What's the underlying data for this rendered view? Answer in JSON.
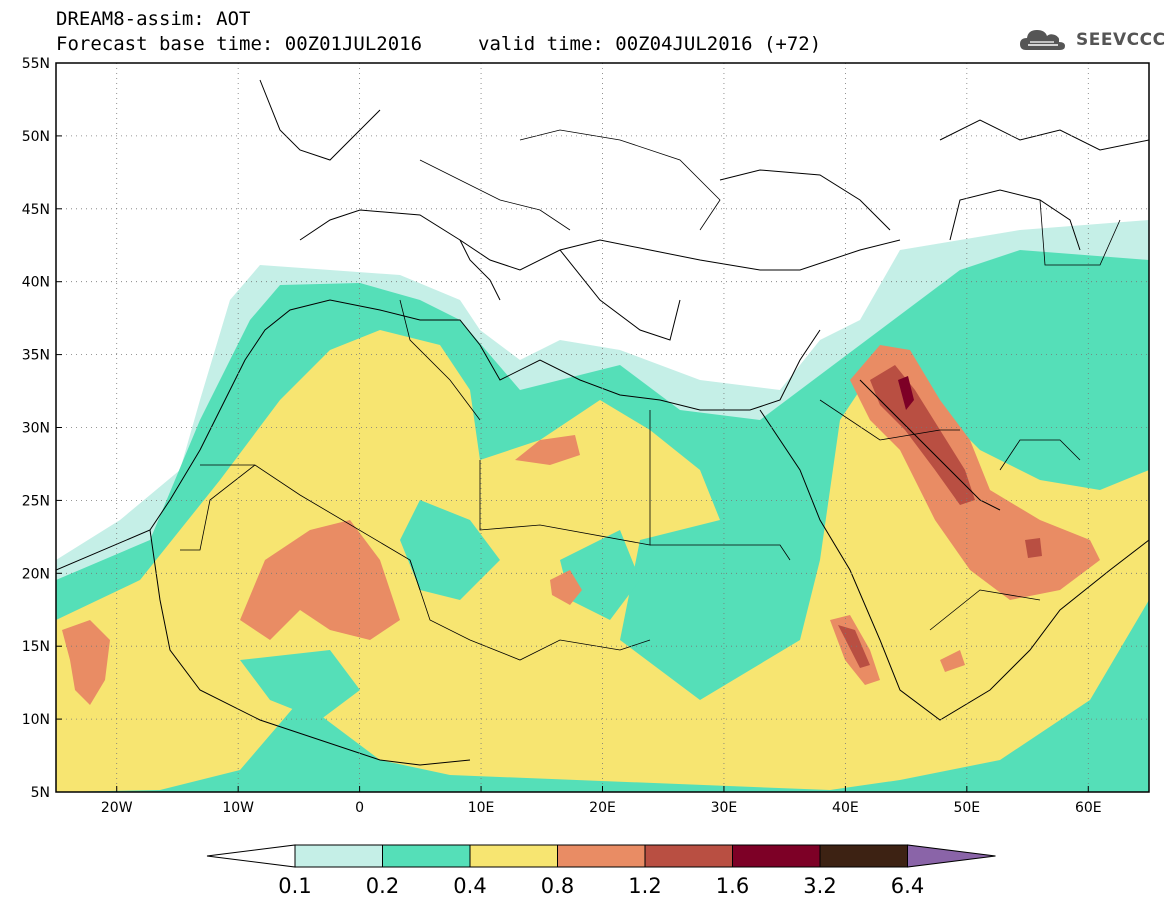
{
  "header": {
    "title": "DREAM8-assim: AOT",
    "base_time": "Forecast base time: 00Z01JUL2016",
    "valid_time": "valid time: 00Z04JUL2016 (+72)"
  },
  "logo": {
    "text": "SEEVCCC",
    "icon": "cloud-icon",
    "color": "#555555"
  },
  "map": {
    "lon_range": [
      -25,
      65
    ],
    "lat_range": [
      5,
      55
    ],
    "lat_ticks": [
      "5N",
      "10N",
      "15N",
      "20N",
      "25N",
      "30N",
      "35N",
      "40N",
      "45N",
      "50N",
      "55N"
    ],
    "lon_ticks": [
      "20W",
      "10W",
      "0",
      "10E",
      "20E",
      "30E",
      "40E",
      "50E",
      "60E"
    ],
    "grid": true
  },
  "colorbar": {
    "levels": [
      "0.1",
      "0.2",
      "0.4",
      "0.8",
      "1.2",
      "1.6",
      "3.2",
      "6.4"
    ],
    "colors": [
      "#c5efe7",
      "#55dfb8",
      "#f7e571",
      "#e98c64",
      "#b94f42",
      "#7d0026",
      "#3d2213"
    ],
    "under_color": "#ffffff",
    "over_color": "#8a64a8"
  }
}
